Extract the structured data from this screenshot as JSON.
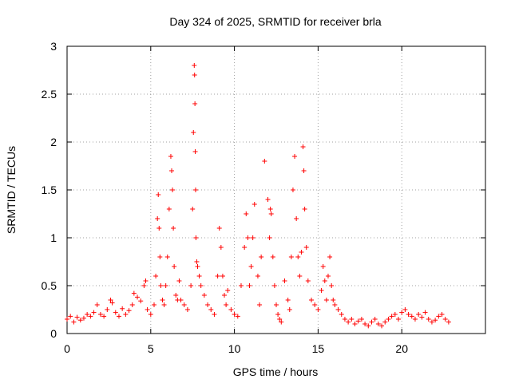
{
  "chart_data": {
    "type": "scatter",
    "title": "Day 324 of 2025, SRMTID for receiver brla",
    "xlabel": "GPS time / hours",
    "ylabel": "SRMTID / TECUs",
    "xlim": [
      0,
      25
    ],
    "ylim": [
      0,
      3
    ],
    "xticks": [
      0,
      5,
      10,
      15,
      20
    ],
    "xtick_labels": [
      "0",
      "5",
      "10",
      "15",
      "20"
    ],
    "yticks": [
      0,
      0.5,
      1,
      1.5,
      2,
      2.5,
      3
    ],
    "ytick_labels": [
      "0",
      "0.5",
      "1",
      "1.5",
      "2",
      "2.5",
      "3"
    ],
    "grid": true,
    "marker": "+",
    "series": [
      {
        "name": "SRMTID",
        "color": "#ff0000",
        "x": [
          0.0,
          0.2,
          0.4,
          0.6,
          0.8,
          1.0,
          1.2,
          1.4,
          1.6,
          1.8,
          2.0,
          2.2,
          2.4,
          2.6,
          2.7,
          2.9,
          3.1,
          3.3,
          3.5,
          3.7,
          3.9,
          4.0,
          4.2,
          4.4,
          4.6,
          4.7,
          4.8,
          5.0,
          5.2,
          5.3,
          5.4,
          5.45,
          5.5,
          5.55,
          5.6,
          5.7,
          5.8,
          5.9,
          6.0,
          6.1,
          6.2,
          6.25,
          6.3,
          6.35,
          6.4,
          6.5,
          6.6,
          6.7,
          6.8,
          7.0,
          7.2,
          7.4,
          7.5,
          7.55,
          7.6,
          7.62,
          7.64,
          7.66,
          7.68,
          7.7,
          7.75,
          7.8,
          7.9,
          8.0,
          8.2,
          8.4,
          8.6,
          8.8,
          9.0,
          9.1,
          9.2,
          9.3,
          9.4,
          9.5,
          9.6,
          9.8,
          10.0,
          10.2,
          10.4,
          10.6,
          10.7,
          10.8,
          10.9,
          11.0,
          11.1,
          11.2,
          11.4,
          11.5,
          11.6,
          11.8,
          12.0,
          12.1,
          12.15,
          12.2,
          12.3,
          12.4,
          12.5,
          12.6,
          12.7,
          12.8,
          13.0,
          13.2,
          13.3,
          13.4,
          13.5,
          13.6,
          13.7,
          13.8,
          13.9,
          14.0,
          14.1,
          14.15,
          14.2,
          14.3,
          14.4,
          14.6,
          14.8,
          15.0,
          15.2,
          15.3,
          15.4,
          15.5,
          15.6,
          15.7,
          15.8,
          15.9,
          16.0,
          16.2,
          16.4,
          16.6,
          16.8,
          17.0,
          17.2,
          17.4,
          17.6,
          17.8,
          18.0,
          18.2,
          18.4,
          18.6,
          18.8,
          19.0,
          19.2,
          19.4,
          19.6,
          19.8,
          20.0,
          20.2,
          20.4,
          20.6,
          20.8,
          21.0,
          21.2,
          21.4,
          21.6,
          21.8,
          22.0,
          22.2,
          22.4,
          22.6,
          22.8
        ],
        "y": [
          0.15,
          0.18,
          0.12,
          0.17,
          0.14,
          0.16,
          0.2,
          0.18,
          0.22,
          0.3,
          0.2,
          0.18,
          0.25,
          0.35,
          0.32,
          0.22,
          0.18,
          0.26,
          0.2,
          0.24,
          0.3,
          0.42,
          0.38,
          0.34,
          0.5,
          0.55,
          0.25,
          0.2,
          0.3,
          0.6,
          1.2,
          1.45,
          1.1,
          0.8,
          0.5,
          0.35,
          0.3,
          0.5,
          0.8,
          1.3,
          1.85,
          1.7,
          1.5,
          1.1,
          0.7,
          0.4,
          0.35,
          0.55,
          0.35,
          0.3,
          0.25,
          0.5,
          1.3,
          2.1,
          2.8,
          2.7,
          2.4,
          1.9,
          1.5,
          1.0,
          0.75,
          0.7,
          0.6,
          0.5,
          0.4,
          0.3,
          0.25,
          0.2,
          0.6,
          1.1,
          0.9,
          0.6,
          0.4,
          0.3,
          0.45,
          0.25,
          0.2,
          0.18,
          0.5,
          0.9,
          1.25,
          1.0,
          0.5,
          0.7,
          1.0,
          1.35,
          0.6,
          0.3,
          0.8,
          1.8,
          1.4,
          1.0,
          1.3,
          1.25,
          0.8,
          0.5,
          0.3,
          0.2,
          0.15,
          0.12,
          0.55,
          0.35,
          0.25,
          0.8,
          1.5,
          1.85,
          1.2,
          0.8,
          0.6,
          0.85,
          1.95,
          1.7,
          1.3,
          0.9,
          0.55,
          0.35,
          0.3,
          0.25,
          0.45,
          0.7,
          0.55,
          0.35,
          0.6,
          0.8,
          0.5,
          0.35,
          0.3,
          0.25,
          0.2,
          0.15,
          0.12,
          0.15,
          0.1,
          0.13,
          0.15,
          0.1,
          0.08,
          0.12,
          0.15,
          0.1,
          0.08,
          0.12,
          0.15,
          0.18,
          0.2,
          0.15,
          0.22,
          0.25,
          0.2,
          0.18,
          0.15,
          0.2,
          0.17,
          0.22,
          0.15,
          0.12,
          0.14,
          0.18,
          0.2,
          0.15,
          0.12
        ]
      }
    ]
  }
}
